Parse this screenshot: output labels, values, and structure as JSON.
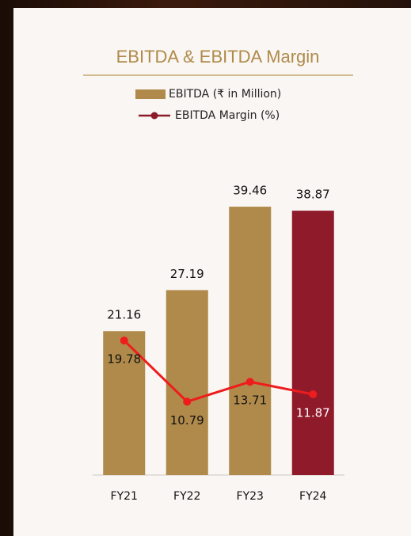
{
  "chart_data": {
    "type": "bar",
    "title": "EBITDA & EBITDA Margin",
    "categories": [
      "FY21",
      "FY22",
      "FY23",
      "FY24"
    ],
    "series": [
      {
        "name": "EBITDA (₹ in Million)",
        "type": "bar",
        "color": "#b08a4a",
        "colors": [
          "#b08a4a",
          "#b08a4a",
          "#b08a4a",
          "#8f1a2a"
        ],
        "values": [
          21.16,
          27.19,
          39.46,
          38.87
        ]
      },
      {
        "name": "EBITDA Margin (%)",
        "type": "line",
        "color": "#ee1c1c",
        "legend_color": "#8b1a2a",
        "values": [
          19.78,
          10.79,
          13.71,
          11.87
        ]
      }
    ],
    "ylim": [
      0,
      40
    ]
  }
}
